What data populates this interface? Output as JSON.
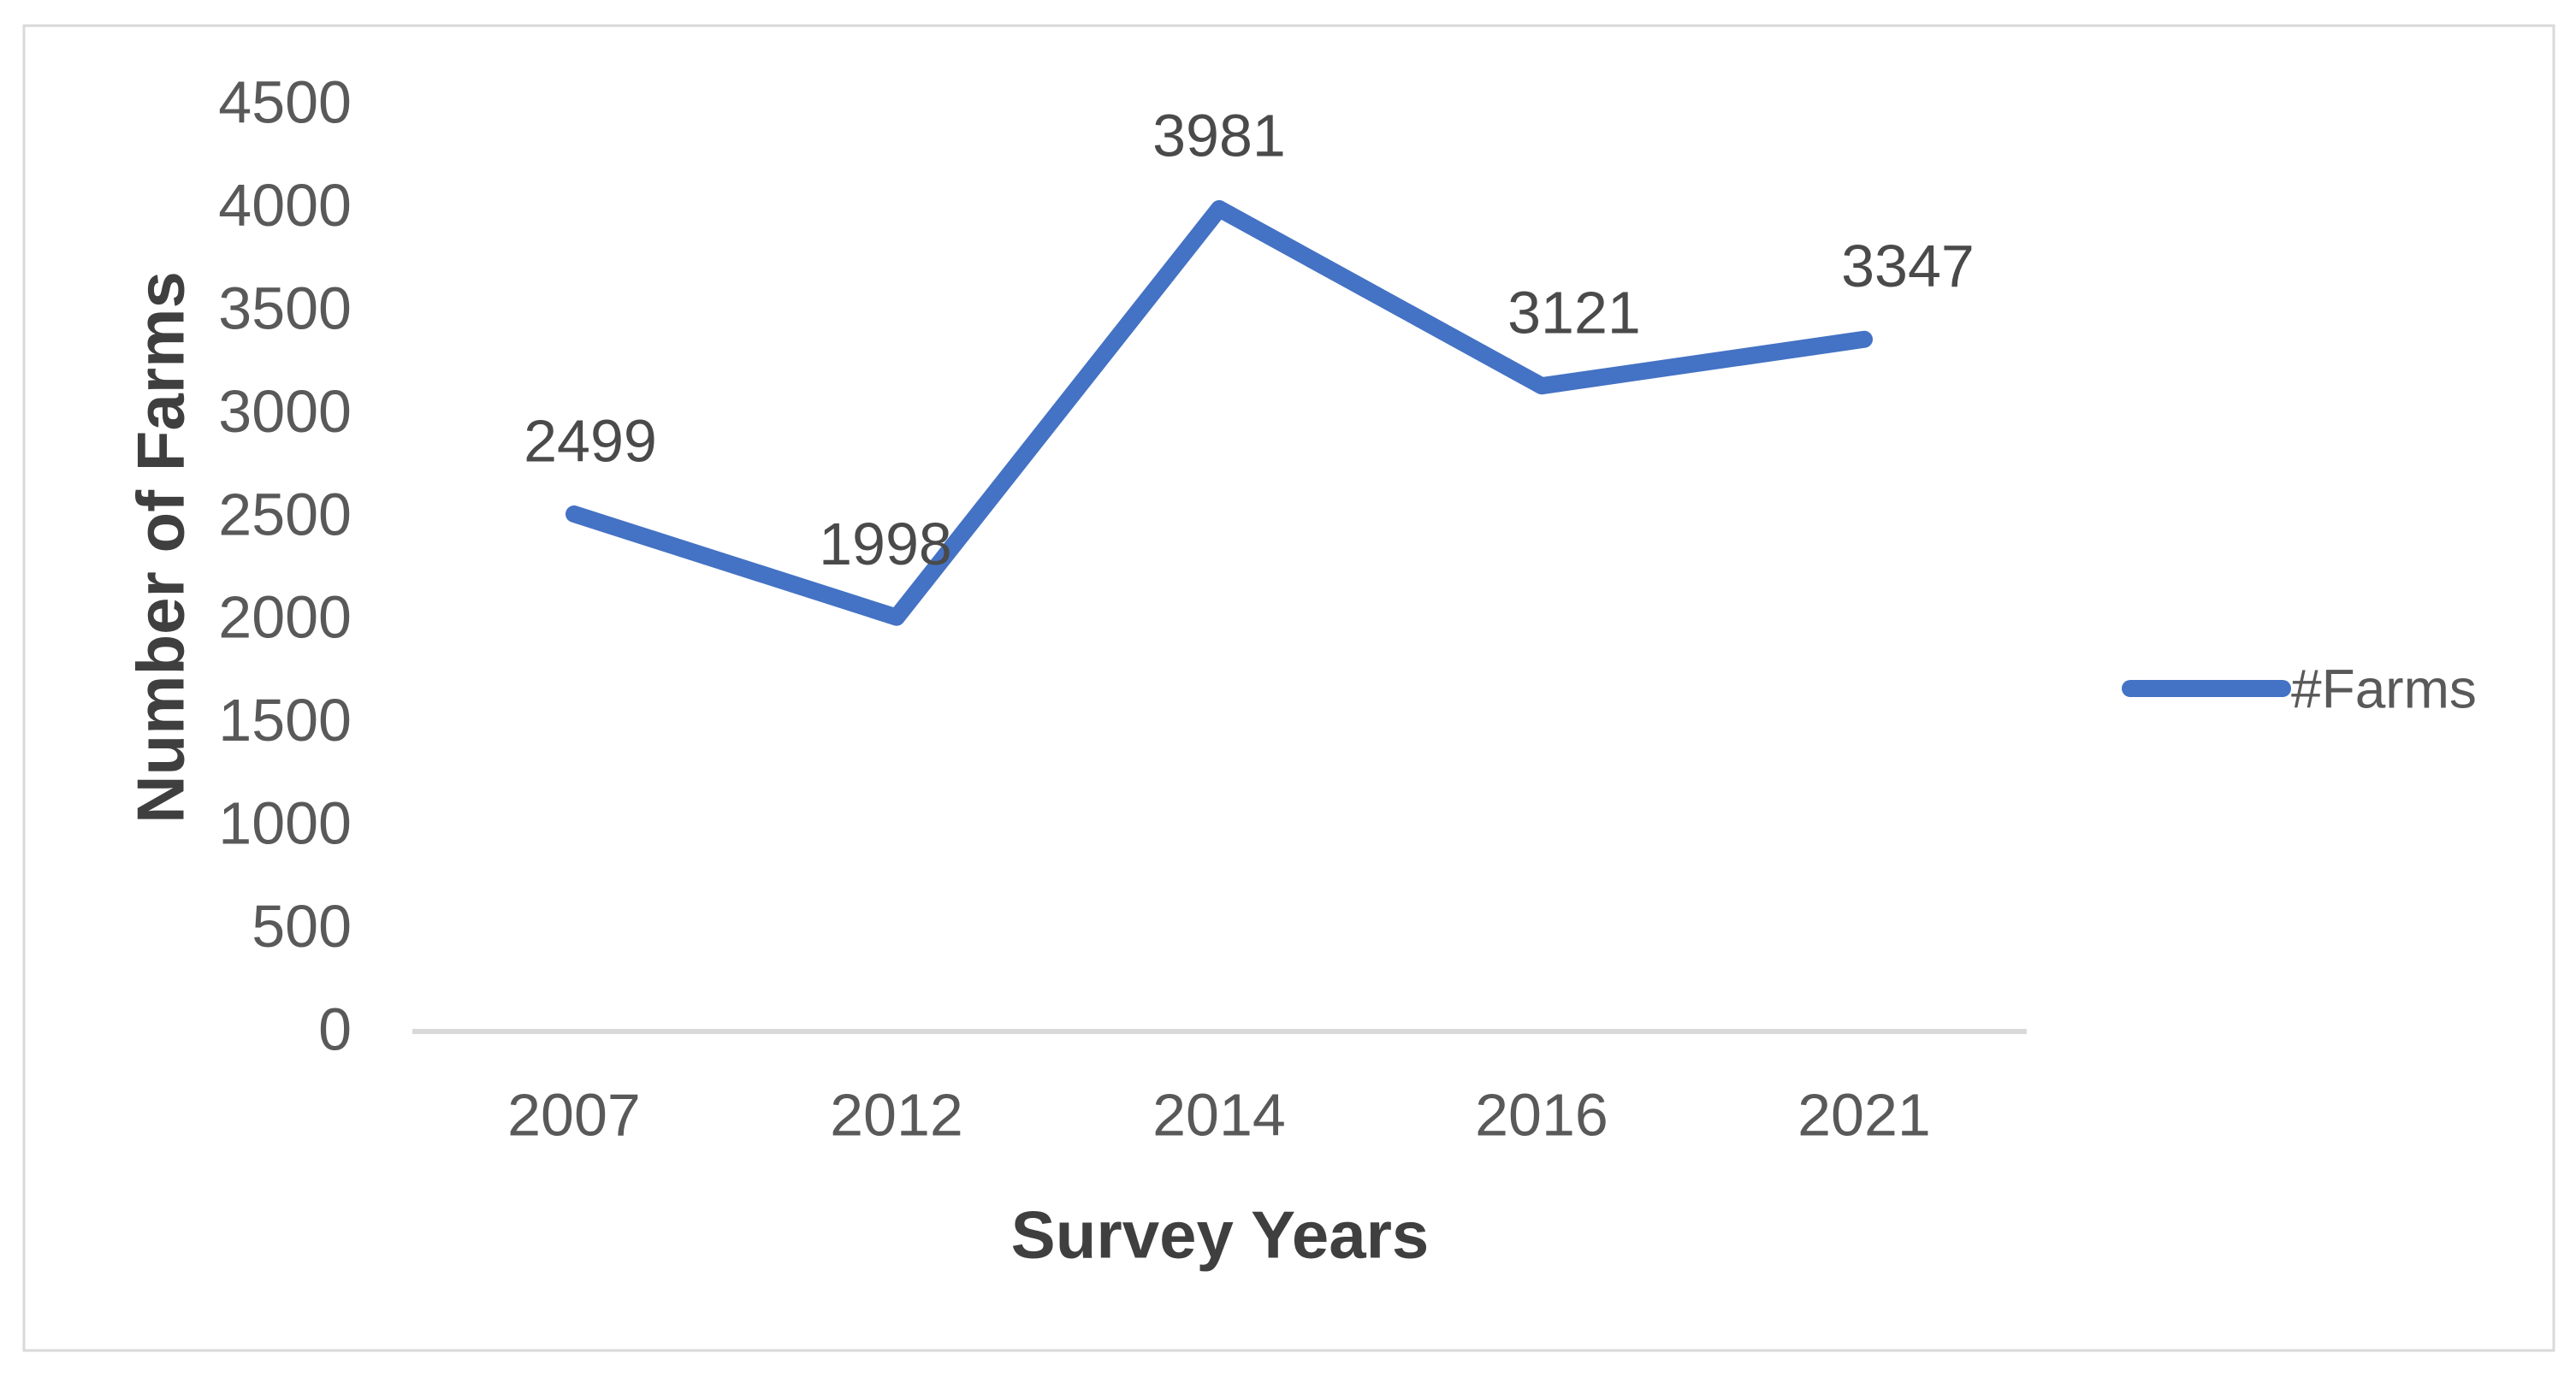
{
  "chart_data": {
    "type": "line",
    "categories": [
      "2007",
      "2012",
      "2014",
      "2016",
      "2021"
    ],
    "series": [
      {
        "name": "#Farms",
        "values": [
          2499,
          1998,
          3981,
          3121,
          3347
        ]
      }
    ],
    "data_labels": [
      "2499",
      "1998",
      "3981",
      "3121",
      "3347"
    ],
    "xlabel": "Survey Years",
    "ylabel": "Number of Farms",
    "ylim": [
      0,
      4500
    ],
    "ytick_step": 500,
    "ytick_labels": [
      "0",
      "500",
      "1000",
      "1500",
      "2000",
      "2500",
      "3000",
      "3500",
      "4000",
      "4500"
    ],
    "grid": false,
    "legend_position": "right",
    "line_color": "#4472C4",
    "axis_line_color": "#D9D9D9",
    "frame_color": "#D9D9D9",
    "tick_label_color": "#595959",
    "data_label_color": "#4a4a4a",
    "title_color": "#3f3f3f"
  },
  "legend": {
    "label": "#Farms"
  }
}
